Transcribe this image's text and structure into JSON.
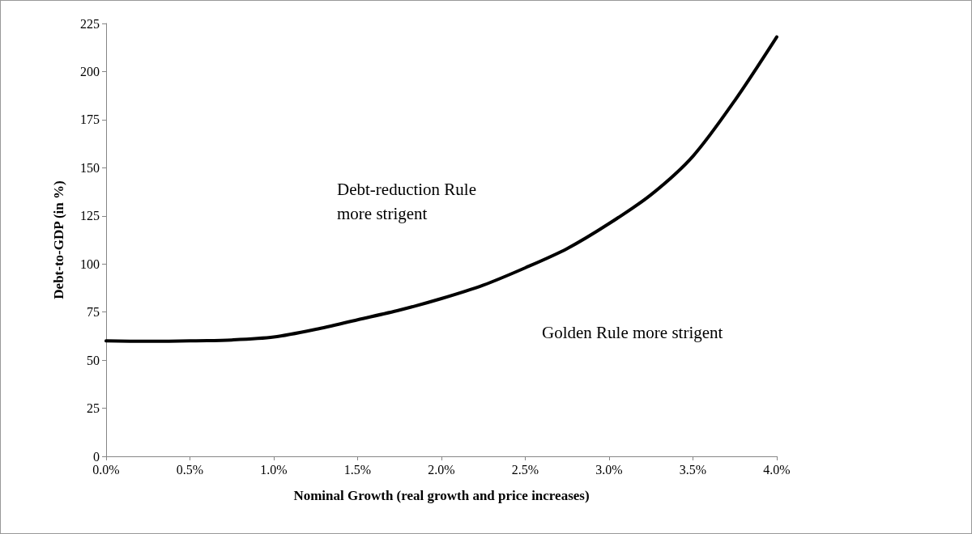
{
  "chart_data": {
    "type": "line",
    "xlabel": "Nominal Growth (real growth and price increases)",
    "ylabel": "Debt-to-GDP (in %)",
    "x": [
      0,
      0.25,
      0.5,
      0.75,
      1.0,
      1.25,
      1.5,
      1.75,
      2.0,
      2.25,
      2.5,
      2.75,
      3.0,
      3.25,
      3.5,
      3.75,
      4.0
    ],
    "series": [
      {
        "color": "#000000",
        "values": [
          60,
          59.8,
          60,
          60.5,
          62,
          66,
          71,
          76,
          82,
          89,
          98,
          108,
          121,
          136,
          156,
          185,
          218
        ]
      }
    ],
    "xlim": [
      0,
      4
    ],
    "xticks": [
      {
        "value": 0,
        "label": "0.0%"
      },
      {
        "value": 0.5,
        "label": "0.5%"
      },
      {
        "value": 1,
        "label": "1.0%"
      },
      {
        "value": 1.5,
        "label": "1.5%"
      },
      {
        "value": 2,
        "label": "2.0%"
      },
      {
        "value": 2.5,
        "label": "2.5%"
      },
      {
        "value": 3,
        "label": "3.0%"
      },
      {
        "value": 3.5,
        "label": "3.5%"
      },
      {
        "value": 4,
        "label": "4.0%"
      }
    ],
    "ylim": [
      0,
      225
    ],
    "yticks": [
      0,
      25,
      50,
      75,
      100,
      125,
      150,
      175,
      200,
      225
    ],
    "annotations": [
      "Debt-reduction Rule\nmore strigent",
      "Golden Rule more strigent"
    ],
    "grid": false,
    "marker": "none",
    "line_style": "solid"
  }
}
